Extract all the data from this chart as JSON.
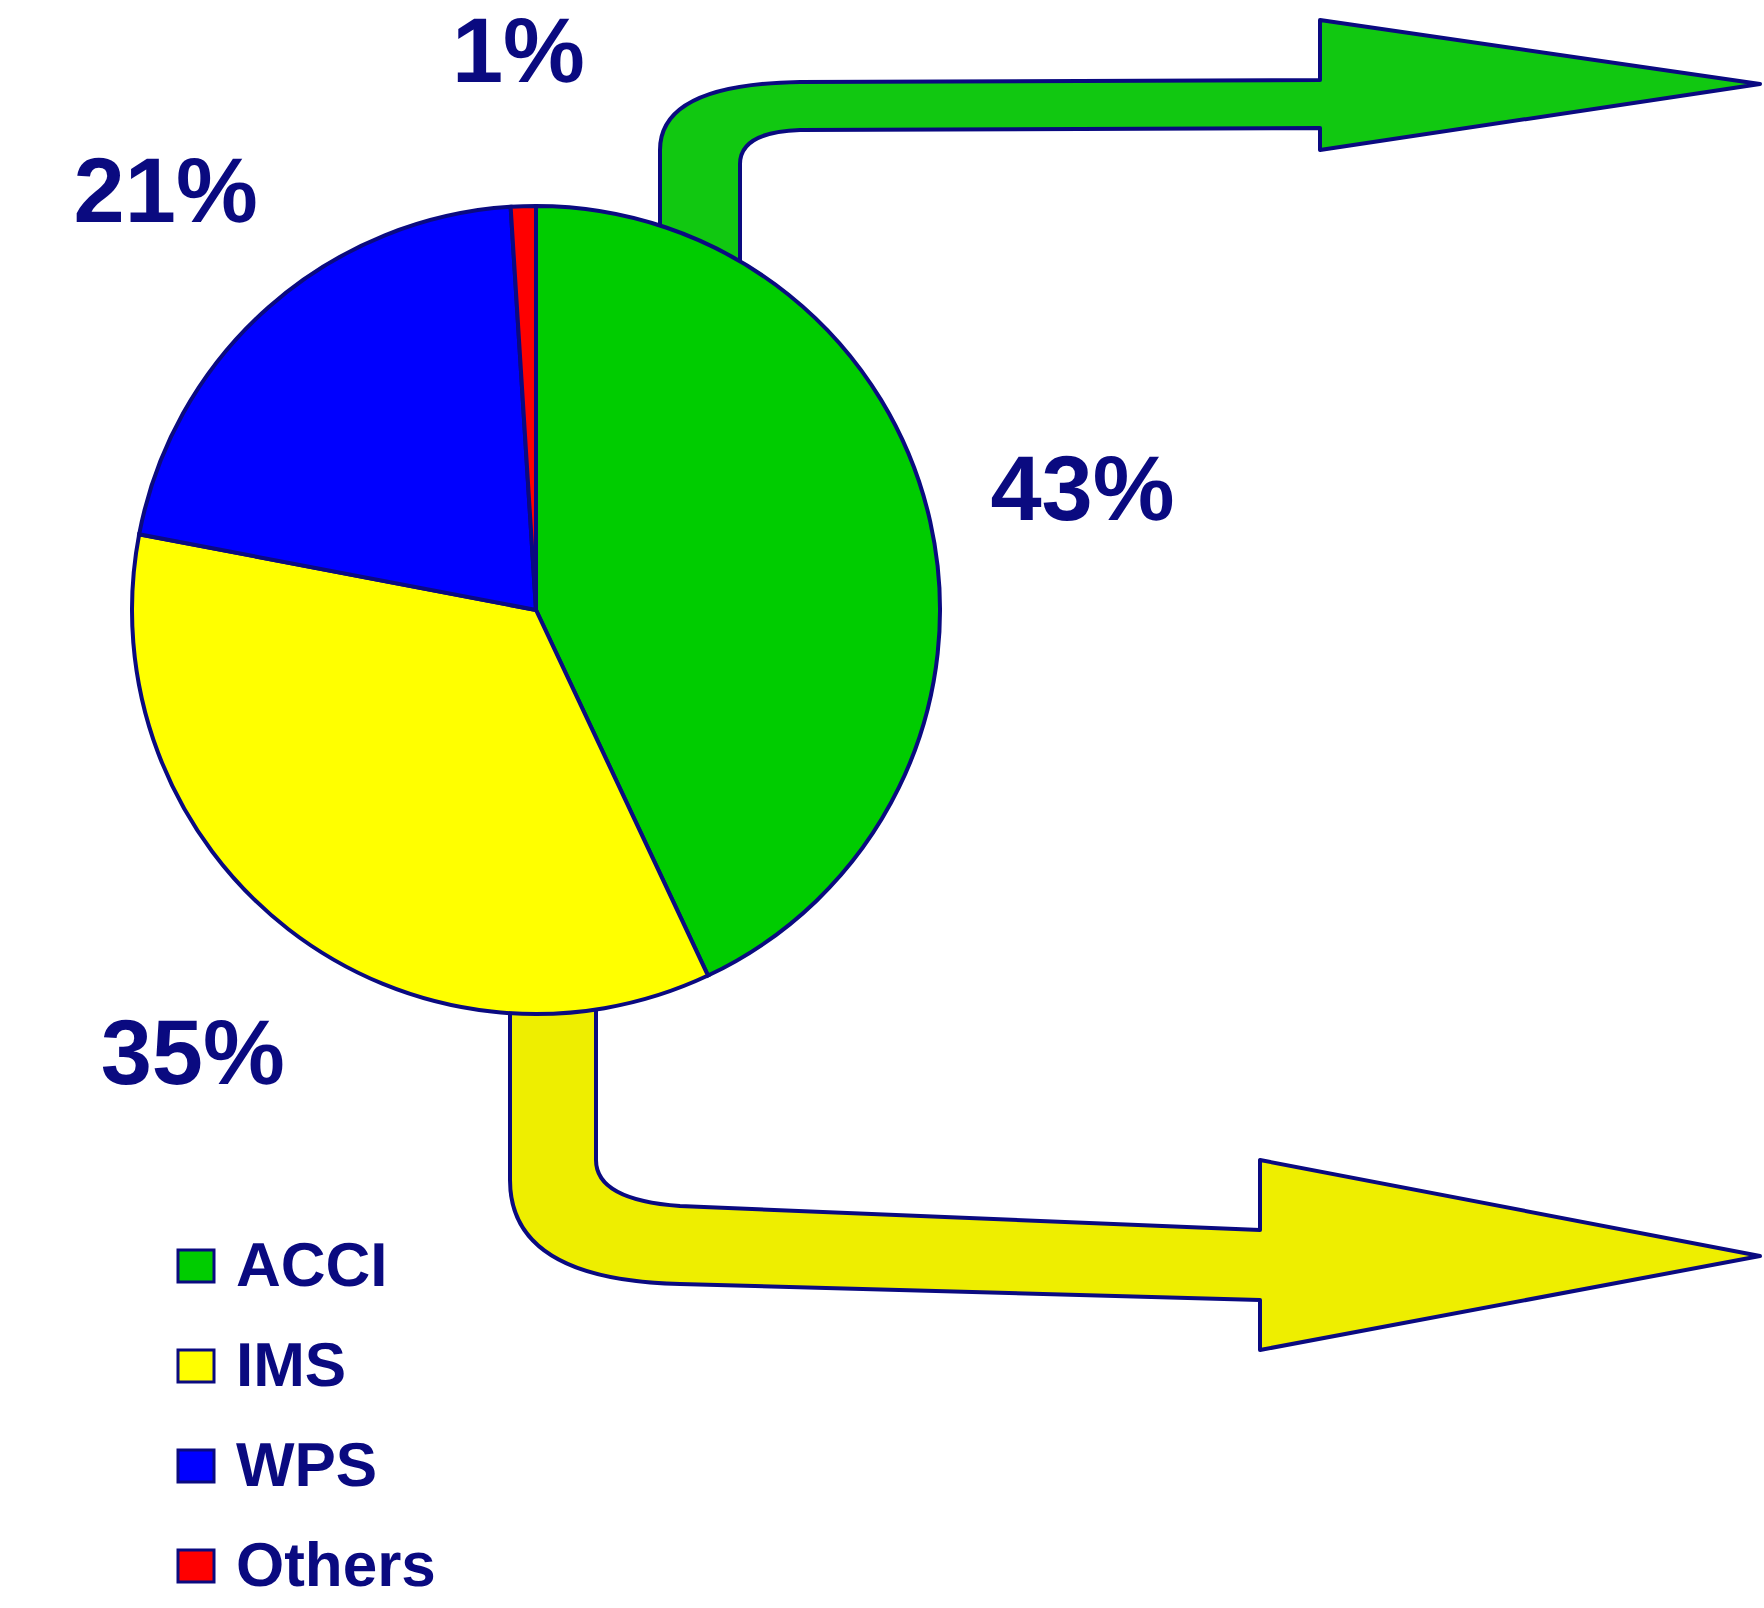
{
  "chart_data": {
    "type": "pie",
    "categories": [
      "ACCI",
      "IMS",
      "WPS",
      "Others"
    ],
    "values": [
      43,
      35,
      21,
      1
    ],
    "colors": [
      "#00cc00",
      "#ffff00",
      "#0000ff",
      "#ff0000"
    ],
    "value_labels": [
      "43%",
      "35%",
      "21%",
      "1%"
    ],
    "legend": "bottom left"
  }
}
